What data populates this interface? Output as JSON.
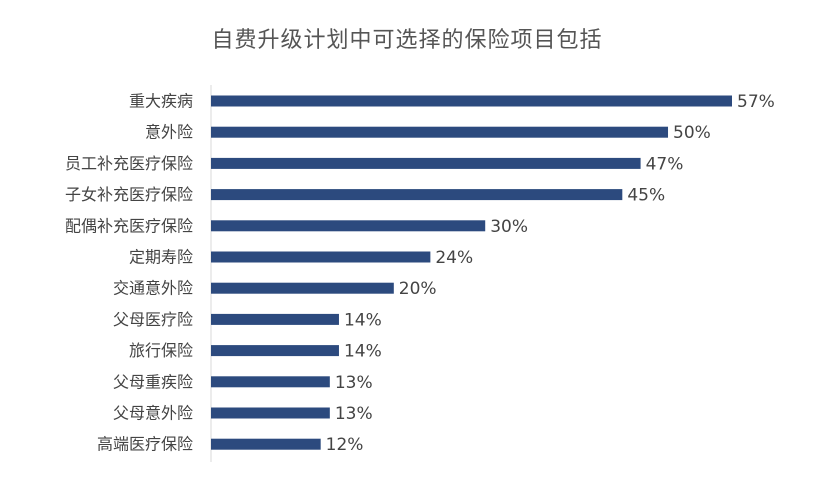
{
  "chart_data": {
    "type": "bar",
    "orientation": "horizontal",
    "title": "自费升级计划中可选择的保险项目包括",
    "categories": [
      "重大疾病",
      "意外险",
      "员工补充医疗保险",
      "子女补充医疗保险",
      "配偶补充医疗保险",
      "定期寿险",
      "交通意外险",
      "父母医疗险",
      "旅行保险",
      "父母重疾险",
      "父母意外险",
      "高端医疗保险"
    ],
    "values": [
      57,
      50,
      47,
      45,
      30,
      24,
      20,
      14,
      14,
      13,
      13,
      12
    ],
    "value_labels": [
      "57%",
      "50%",
      "47%",
      "45%",
      "30%",
      "24%",
      "20%",
      "14%",
      "14%",
      "13%",
      "13%",
      "12%"
    ],
    "unit": "%",
    "xlim": [
      0,
      57
    ],
    "grid": false,
    "legend": "none",
    "bar_color": "#2c4a7e"
  }
}
